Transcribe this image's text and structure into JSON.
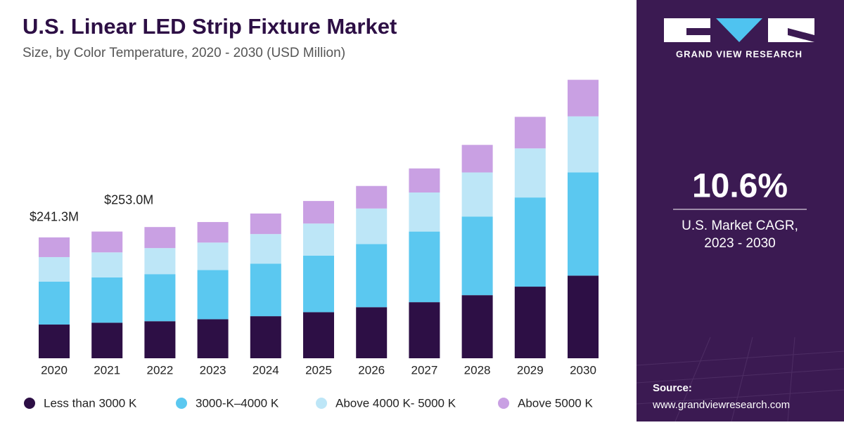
{
  "chart_data": {
    "type": "bar",
    "stacked": true,
    "title": "U.S. Linear LED Strip Fixture Market",
    "subtitle": "Size, by Color Temperature, 2020 - 2030 (USD Million)",
    "categories": [
      "2020",
      "2021",
      "2022",
      "2023",
      "2024",
      "2025",
      "2026",
      "2027",
      "2028",
      "2029",
      "2030"
    ],
    "series": [
      {
        "name": "Less than 3000 K",
        "color": "#2d0f45",
        "values": [
          67.3,
          71,
          74,
          78,
          84,
          92,
          102,
          112,
          126,
          143,
          165
        ]
      },
      {
        "name": "3000-K–4000 K",
        "color": "#5bc8f0",
        "values": [
          85.6,
          90.4,
          94,
          98,
          105,
          113,
          126,
          141,
          157,
          178,
          206
        ]
      },
      {
        "name": "Above 4000 K- 5000 K",
        "color": "#bde6f7",
        "values": [
          49.1,
          50,
          52,
          55,
          59,
          64,
          71,
          78,
          88,
          98,
          112
        ]
      },
      {
        "name": "Above 5000 K",
        "color": "#c9a0e3",
        "values": [
          39.3,
          41.6,
          42,
          41,
          41,
          45,
          45,
          48,
          55,
          63,
          73
        ]
      }
    ],
    "annotations": [
      "$241.3M",
      "$253.0M"
    ]
  },
  "side_panel": {
    "brand": "GRAND VIEW RESEARCH",
    "cagr": "10.6%",
    "cagr_label": [
      "U.S. Market CAGR,",
      "2023 - 2030"
    ],
    "source_label": "Source:",
    "source_url": "www.grandviewresearch.com"
  }
}
